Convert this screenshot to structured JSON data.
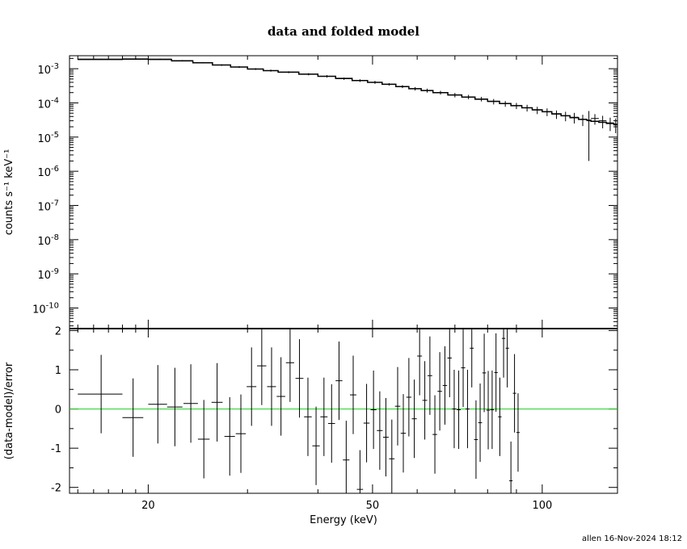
{
  "footer": "allen 16-Nov-2024 18:12",
  "chart_data": [
    {
      "type": "scatter",
      "title": "data and folded model",
      "xlabel": "",
      "ylabel": "counts s⁻¹ keV⁻¹",
      "xscale": "log",
      "yscale": "log",
      "xlim": [
        14.5,
        136
      ],
      "ylim": [
        2.5e-11,
        0.0024
      ],
      "yticks": [
        {
          "v": 0.001,
          "exp": "-3"
        },
        {
          "v": 0.0001,
          "exp": "-4"
        },
        {
          "v": 1e-05,
          "exp": "-5"
        },
        {
          "v": 1e-06,
          "exp": "-6"
        },
        {
          "v": 1e-07,
          "exp": "-7"
        },
        {
          "v": 1e-08,
          "exp": "-8"
        },
        {
          "v": 1e-09,
          "exp": "-9"
        },
        {
          "v": 1e-10,
          "exp": "-10"
        }
      ],
      "series": [
        {
          "note": "data points with x (energy bin) and y error bars",
          "points": [
            {
              "x": 16.5,
              "dx": 1.5,
              "y": 0.0019,
              "dy": 6e-05
            },
            {
              "x": 19.0,
              "dx": 1.0,
              "y": 0.00195,
              "dy": 6e-05
            },
            {
              "x": 21.0,
              "dx": 1.0,
              "y": 0.0019,
              "dy": 7e-05
            },
            {
              "x": 23.0,
              "dx": 1.0,
              "y": 0.00172,
              "dy": 7e-05
            },
            {
              "x": 25.0,
              "dx": 1.0,
              "y": 0.0015,
              "dy": 7e-05
            },
            {
              "x": 27.0,
              "dx": 1.0,
              "y": 0.00128,
              "dy": 7e-05
            },
            {
              "x": 29.0,
              "dx": 1.0,
              "y": 0.00112,
              "dy": 7e-05
            },
            {
              "x": 31.0,
              "dx": 1.0,
              "y": 0.00098,
              "dy": 6e-05
            },
            {
              "x": 33.0,
              "dx": 1.0,
              "y": 0.00088,
              "dy": 6e-05
            },
            {
              "x": 35.5,
              "dx": 1.5,
              "y": 0.00079,
              "dy": 5e-05
            },
            {
              "x": 38.5,
              "dx": 1.5,
              "y": 0.00069,
              "dy": 5e-05
            },
            {
              "x": 41.5,
              "dx": 1.5,
              "y": 0.0006,
              "dy": 5e-05
            },
            {
              "x": 44.5,
              "dx": 1.5,
              "y": 0.00051,
              "dy": 4e-05
            },
            {
              "x": 47.5,
              "dx": 1.5,
              "y": 0.00045,
              "dy": 4e-05
            },
            {
              "x": 50.5,
              "dx": 1.5,
              "y": 0.0004,
              "dy": 4e-05
            },
            {
              "x": 53.5,
              "dx": 1.5,
              "y": 0.00035,
              "dy": 3e-05
            },
            {
              "x": 56.5,
              "dx": 1.5,
              "y": 0.0003,
              "dy": 3e-05
            },
            {
              "x": 59.5,
              "dx": 1.5,
              "y": 0.00026,
              "dy": 3e-05
            },
            {
              "x": 62.5,
              "dx": 1.5,
              "y": 0.00023,
              "dy": 3e-05
            },
            {
              "x": 66.0,
              "dx": 2.0,
              "y": 0.0002,
              "dy": 2.5e-05
            },
            {
              "x": 70.0,
              "dx": 2.0,
              "y": 0.00017,
              "dy": 2.5e-05
            },
            {
              "x": 74.0,
              "dx": 2.0,
              "y": 0.00015,
              "dy": 2.2e-05
            },
            {
              "x": 78.0,
              "dx": 2.0,
              "y": 0.00013,
              "dy": 2e-05
            },
            {
              "x": 82.0,
              "dx": 2.0,
              "y": 0.00011,
              "dy": 2e-05
            },
            {
              "x": 86.0,
              "dx": 2.0,
              "y": 9.5e-05,
              "dy": 1.8e-05
            },
            {
              "x": 90.0,
              "dx": 2.0,
              "y": 8.3e-05,
              "dy": 1.7e-05
            },
            {
              "x": 94.0,
              "dx": 2.0,
              "y": 7.2e-05,
              "dy": 1.6e-05
            },
            {
              "x": 98.0,
              "dx": 2.0,
              "y": 6.2e-05,
              "dy": 1.5e-05
            },
            {
              "x": 102.0,
              "dx": 2.0,
              "y": 5.5e-05,
              "dy": 1.4e-05
            },
            {
              "x": 106.0,
              "dx": 2.0,
              "y": 4.7e-05,
              "dy": 1.3e-05
            },
            {
              "x": 110.0,
              "dx": 2.0,
              "y": 4.2e-05,
              "dy": 1.3e-05
            },
            {
              "x": 114.0,
              "dx": 2.0,
              "y": 3.8e-05,
              "dy": 1.3e-05
            },
            {
              "x": 118.0,
              "dx": 2.0,
              "y": 3.3e-05,
              "dy": 1.2e-05
            },
            {
              "x": 121.0,
              "dx": 1.0,
              "y": 3e-05,
              "dy": 2.8e-05
            },
            {
              "x": 124.0,
              "dx": 2.0,
              "y": 3.5e-05,
              "dy": 1.2e-05
            },
            {
              "x": 128.0,
              "dx": 2.0,
              "y": 3e-05,
              "dy": 1.2e-05
            },
            {
              "x": 132.0,
              "dx": 2.0,
              "y": 2.6e-05,
              "dy": 1.1e-05
            },
            {
              "x": 135.0,
              "dx": 1.0,
              "y": 2.4e-05,
              "dy": 1.1e-05
            }
          ]
        },
        {
          "note": "folded model (step line)",
          "edges": [
            15,
            18,
            20,
            22,
            24,
            26,
            28,
            30,
            32,
            34,
            37,
            40,
            43,
            46,
            49,
            52,
            55,
            58,
            61,
            64,
            68,
            72,
            76,
            80,
            84,
            88,
            92,
            96,
            100,
            104,
            108,
            112,
            116,
            120,
            122,
            126,
            130,
            134,
            136
          ],
          "values": [
            0.00186,
            0.00191,
            0.00186,
            0.0017,
            0.00149,
            0.00128,
            0.00112,
            0.00098,
            0.00088,
            0.00079,
            0.00069,
            0.0006,
            0.00052,
            0.00045,
            0.0004,
            0.00035,
            0.0003,
            0.00026,
            0.00023,
            0.0002,
            0.00017,
            0.000148,
            0.000128,
            0.000111,
            9.6e-05,
            8.3e-05,
            7.2e-05,
            6.3e-05,
            5.5e-05,
            4.8e-05,
            4.2e-05,
            3.7e-05,
            3.3e-05,
            3.1e-05,
            2.9e-05,
            2.7e-05,
            2.5e-05,
            2.3e-05
          ]
        }
      ]
    },
    {
      "type": "scatter",
      "title": "",
      "xlabel": "Energy (keV)",
      "ylabel": "(data-model)/error",
      "xscale": "log",
      "xlim": [
        14.5,
        136
      ],
      "ylim": [
        -2.15,
        2.05
      ],
      "xticks": [
        20,
        50,
        100
      ],
      "yticks": [
        -2,
        -1,
        0,
        1,
        2
      ],
      "zero_line_color": "#22cc22",
      "points": [
        {
          "x": 16.5,
          "dx": 1.5,
          "y": 0.38,
          "dy": 1.0
        },
        {
          "x": 18.8,
          "dx": 0.8,
          "y": -0.22,
          "dy": 1.0
        },
        {
          "x": 20.8,
          "dx": 0.8,
          "y": 0.12,
          "dy": 1.0
        },
        {
          "x": 22.3,
          "dx": 0.7,
          "y": 0.05,
          "dy": 1.0
        },
        {
          "x": 23.8,
          "dx": 0.7,
          "y": 0.14,
          "dy": 1.0
        },
        {
          "x": 25.1,
          "dx": 0.6,
          "y": -0.77,
          "dy": 1.0
        },
        {
          "x": 26.5,
          "dx": 0.6,
          "y": 0.17,
          "dy": 1.0
        },
        {
          "x": 27.9,
          "dx": 0.6,
          "y": -0.7,
          "dy": 1.0
        },
        {
          "x": 29.2,
          "dx": 0.6,
          "y": -0.63,
          "dy": 1.0
        },
        {
          "x": 30.5,
          "dx": 0.6,
          "y": 0.57,
          "dy": 1.0
        },
        {
          "x": 31.8,
          "dx": 0.6,
          "y": 1.1,
          "dy": 1.0
        },
        {
          "x": 33.1,
          "dx": 0.6,
          "y": 0.57,
          "dy": 1.0
        },
        {
          "x": 34.4,
          "dx": 0.6,
          "y": 0.32,
          "dy": 1.0
        },
        {
          "x": 35.7,
          "dx": 0.6,
          "y": 1.18,
          "dy": 1.0
        },
        {
          "x": 37.1,
          "dx": 0.6,
          "y": 0.78,
          "dy": 1.0
        },
        {
          "x": 38.4,
          "dx": 0.6,
          "y": -0.2,
          "dy": 1.0
        },
        {
          "x": 39.7,
          "dx": 0.6,
          "y": -0.94,
          "dy": 1.0
        },
        {
          "x": 41.0,
          "dx": 0.6,
          "y": -0.2,
          "dy": 1.0
        },
        {
          "x": 42.3,
          "dx": 0.6,
          "y": -0.37,
          "dy": 1.0
        },
        {
          "x": 43.6,
          "dx": 0.6,
          "y": 0.72,
          "dy": 1.0
        },
        {
          "x": 44.9,
          "dx": 0.6,
          "y": -1.3,
          "dy": 1.0
        },
        {
          "x": 46.2,
          "dx": 0.6,
          "y": 0.36,
          "dy": 1.0
        },
        {
          "x": 47.5,
          "dx": 0.6,
          "y": -2.05,
          "dy": 1.0
        },
        {
          "x": 48.8,
          "dx": 0.6,
          "y": -0.36,
          "dy": 1.0
        },
        {
          "x": 50.2,
          "dx": 0.6,
          "y": -0.02,
          "dy": 1.0
        },
        {
          "x": 51.5,
          "dx": 0.6,
          "y": -0.55,
          "dy": 1.0
        },
        {
          "x": 52.8,
          "dx": 0.6,
          "y": -0.72,
          "dy": 1.0
        },
        {
          "x": 54.1,
          "dx": 0.6,
          "y": -1.27,
          "dy": 1.0
        },
        {
          "x": 55.4,
          "dx": 0.6,
          "y": 0.07,
          "dy": 1.0
        },
        {
          "x": 56.7,
          "dx": 0.6,
          "y": -0.62,
          "dy": 1.0
        },
        {
          "x": 58.0,
          "dx": 0.6,
          "y": 0.3,
          "dy": 1.0
        },
        {
          "x": 59.3,
          "dx": 0.6,
          "y": -0.25,
          "dy": 1.0
        },
        {
          "x": 60.6,
          "dx": 0.6,
          "y": 1.35,
          "dy": 1.0
        },
        {
          "x": 61.9,
          "dx": 0.6,
          "y": 0.22,
          "dy": 1.0
        },
        {
          "x": 63.2,
          "dx": 0.6,
          "y": 0.85,
          "dy": 1.0
        },
        {
          "x": 64.5,
          "dx": 0.6,
          "y": -0.65,
          "dy": 1.0
        },
        {
          "x": 65.8,
          "dx": 0.6,
          "y": 0.45,
          "dy": 1.0
        },
        {
          "x": 67.2,
          "dx": 0.6,
          "y": 0.6,
          "dy": 1.0
        },
        {
          "x": 68.5,
          "dx": 0.6,
          "y": 1.3,
          "dy": 1.0
        },
        {
          "x": 69.8,
          "dx": 0.6,
          "y": 0.0,
          "dy": 1.0
        },
        {
          "x": 71.1,
          "dx": 0.6,
          "y": -0.02,
          "dy": 1.0
        },
        {
          "x": 72.4,
          "dx": 0.6,
          "y": 1.05,
          "dy": 1.0
        },
        {
          "x": 73.7,
          "dx": 0.6,
          "y": 0.0,
          "dy": 1.0
        },
        {
          "x": 75.0,
          "dx": 0.6,
          "y": 1.55,
          "dy": 1.0
        },
        {
          "x": 76.3,
          "dx": 0.6,
          "y": -0.78,
          "dy": 1.0
        },
        {
          "x": 77.6,
          "dx": 0.6,
          "y": -0.35,
          "dy": 1.0
        },
        {
          "x": 78.9,
          "dx": 0.6,
          "y": 0.92,
          "dy": 1.0
        },
        {
          "x": 80.2,
          "dx": 0.6,
          "y": -0.03,
          "dy": 1.0
        },
        {
          "x": 81.5,
          "dx": 0.6,
          "y": -0.02,
          "dy": 1.0
        },
        {
          "x": 82.8,
          "dx": 0.6,
          "y": 0.93,
          "dy": 1.0
        },
        {
          "x": 84.1,
          "dx": 0.6,
          "y": -0.2,
          "dy": 1.0
        },
        {
          "x": 85.4,
          "dx": 0.6,
          "y": 1.8,
          "dy": 1.0
        },
        {
          "x": 86.7,
          "dx": 0.6,
          "y": 1.55,
          "dy": 1.0
        },
        {
          "x": 88.0,
          "dx": 0.6,
          "y": -1.83,
          "dy": 1.0
        },
        {
          "x": 89.3,
          "dx": 0.6,
          "y": 0.4,
          "dy": 1.0
        },
        {
          "x": 90.6,
          "dx": 0.6,
          "y": -0.6,
          "dy": 1.0
        }
      ]
    }
  ]
}
